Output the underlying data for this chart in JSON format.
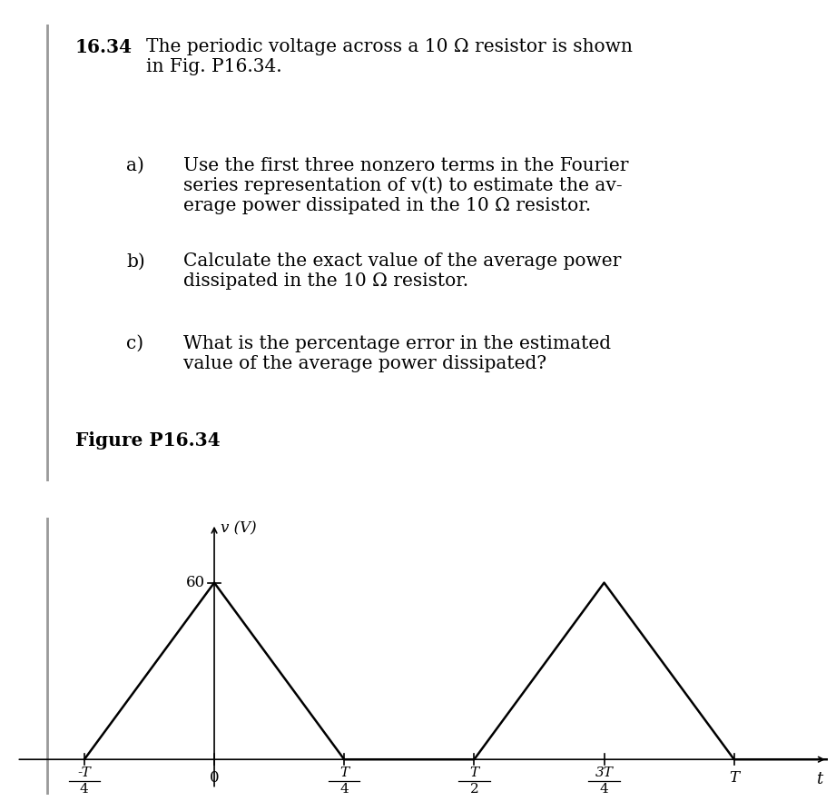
{
  "background_color": "#ffffff",
  "title_num": "16.34",
  "title_text": "The periodic voltage across a 10 Ω resistor is shown\nin Fig. P16.34.",
  "items": [
    {
      "label": "a)",
      "text": "Use the first three nonzero terms in the Fourier\nseries representation of v(t) to estimate the av-\nerage power dissipated in the 10 Ω resistor."
    },
    {
      "label": "b)",
      "text": "Calculate the exact value of the average power\ndissipated in the 10 Ω resistor."
    },
    {
      "label": "c)",
      "text": "What is the percentage error in the estimated\nvalue of the average power dissipated?"
    }
  ],
  "fig_label": "Figure P16.34",
  "ylabel": "v (V)",
  "xlabel": "t",
  "peak_value": 60,
  "line_color": "#000000",
  "tick_positions": [
    -0.25,
    0,
    0.25,
    0.5,
    0.75,
    1.0
  ],
  "waveform_x": [
    -0.25,
    0.0,
    0.25,
    0.5,
    0.75,
    1.0,
    1.25
  ],
  "waveform_y": [
    0,
    60,
    0,
    0,
    60,
    0,
    0
  ],
  "xlim": [
    -0.38,
    1.18
  ],
  "ylim": [
    -12,
    82
  ],
  "text_fontsize": 14.5,
  "fig_label_fontsize": 14.5
}
